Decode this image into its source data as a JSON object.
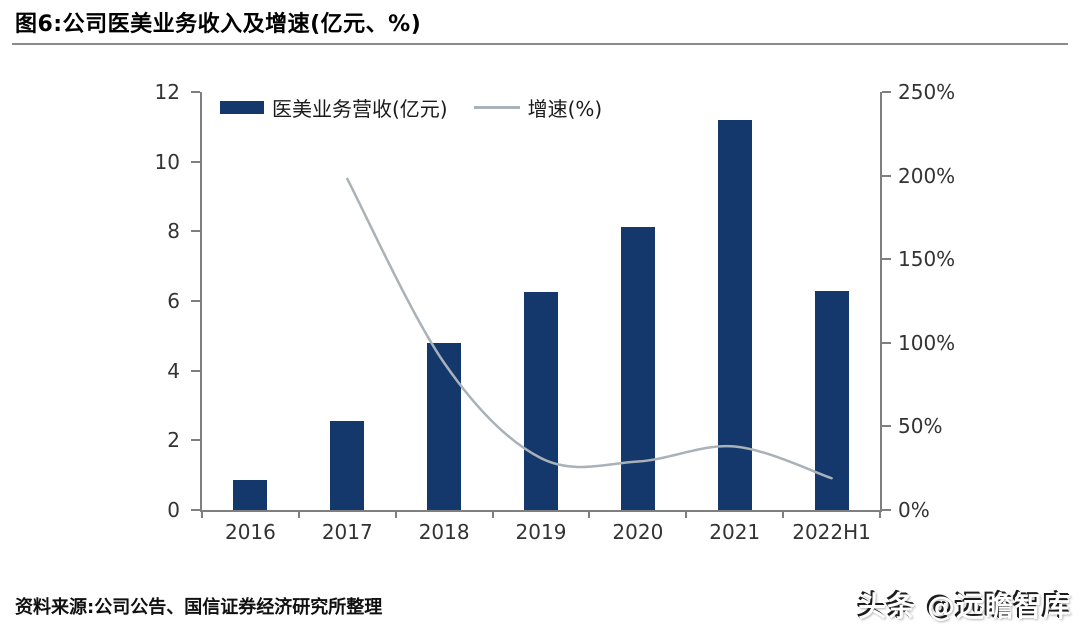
{
  "header": {
    "title": "图6:公司医美业务收入及增速(亿元、%)"
  },
  "footer": {
    "source": "资料来源:公司公告、国信证券经济研究所整理",
    "watermark": "头条 @远瞻智库"
  },
  "colors": {
    "bar": "#14386B",
    "line": "#A9B1B9",
    "axis": "#7F7F7F",
    "tick_label": "#333333"
  },
  "chart_data": {
    "type": "bar+line",
    "title": "公司医美业务收入及增速(亿元、%)",
    "categories": [
      "2016",
      "2017",
      "2018",
      "2019",
      "2020",
      "2021",
      "2022H1"
    ],
    "series": [
      {
        "name": "医美业务营收(亿元)",
        "type": "bar",
        "axis": "left",
        "values": [
          0.86,
          2.55,
          4.8,
          6.27,
          8.13,
          11.2,
          6.3
        ]
      },
      {
        "name": "增速(%)",
        "type": "line",
        "axis": "right",
        "values": [
          null,
          198,
          88,
          31,
          29,
          38,
          19
        ]
      }
    ],
    "ylim": [
      0,
      12
    ],
    "y_left_ticks": [
      "0",
      "2",
      "4",
      "6",
      "8",
      "10",
      "12"
    ],
    "y2lim": [
      0,
      250
    ],
    "y_right_ticks": [
      "0%",
      "50%",
      "100%",
      "150%",
      "200%",
      "250%"
    ],
    "legend_position": "top-left-inside",
    "grid": false
  }
}
